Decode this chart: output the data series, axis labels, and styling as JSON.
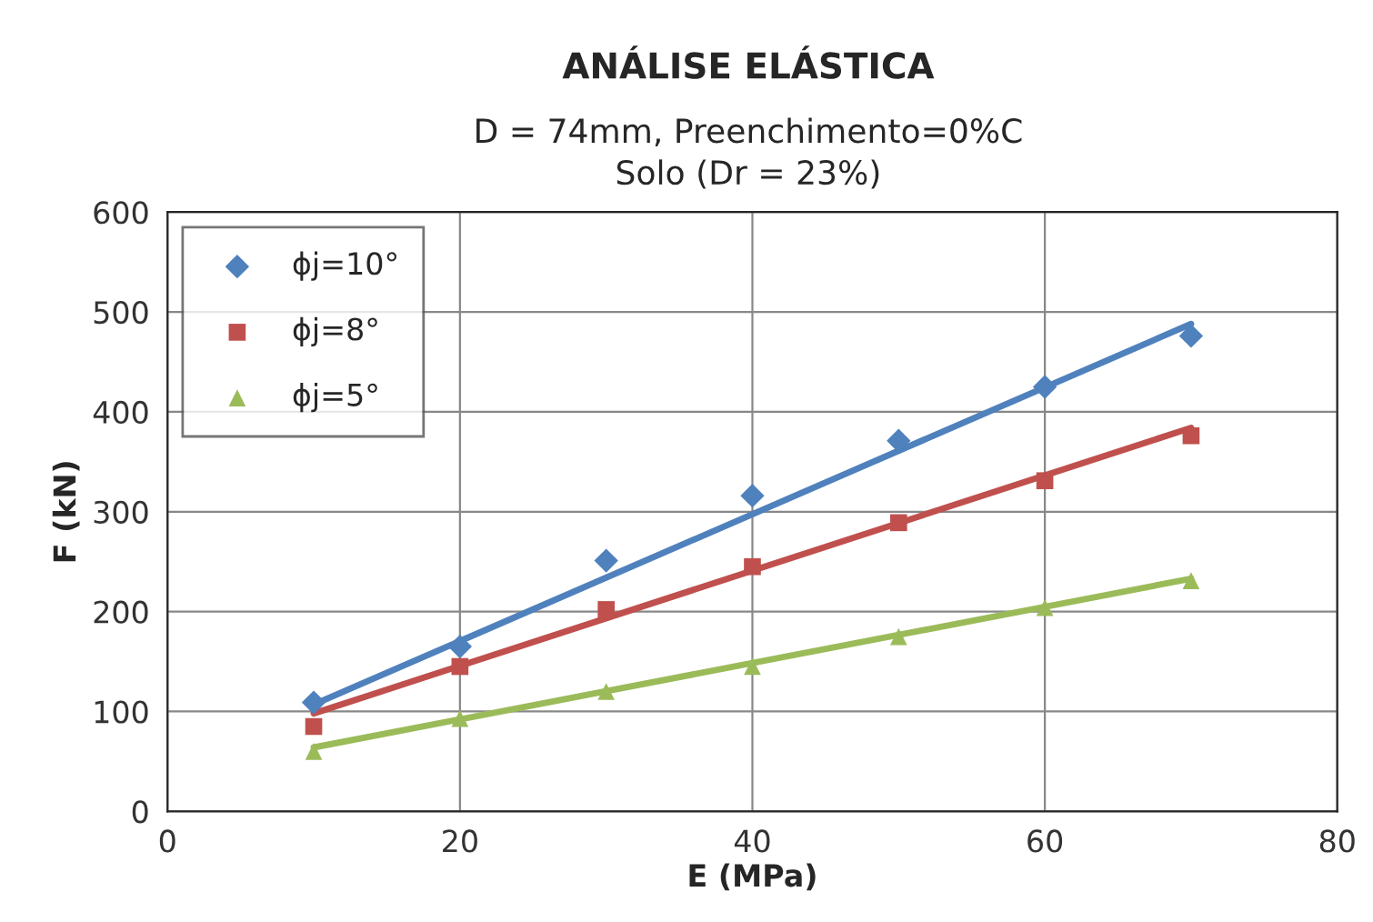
{
  "chart_data": {
    "type": "scatter",
    "title": "ANÁLISE ELÁSTICA",
    "subtitle": "D = 74mm, Preenchimento=0%C\nSolo (Dr = 23%)",
    "xlabel": "E (MPa)",
    "ylabel": "F (kN)",
    "series": [
      {
        "name": "ϕj=10°",
        "color": "#4f81bd",
        "marker": "diamond",
        "x": [
          10,
          20,
          30,
          40,
          50,
          60,
          70
        ],
        "values": [
          109,
          165,
          251,
          316,
          371,
          425,
          476
        ]
      },
      {
        "name": "ϕj=8°",
        "color": "#c0504d",
        "marker": "square",
        "x": [
          10,
          20,
          30,
          40,
          50,
          60,
          70
        ],
        "values": [
          85,
          145,
          202,
          245,
          289,
          331,
          376
        ]
      },
      {
        "name": "ϕj=5°",
        "color": "#9bbb59",
        "marker": "triangle",
        "x": [
          10,
          20,
          30,
          40,
          50,
          60,
          70
        ],
        "values": [
          60,
          93,
          120,
          145,
          175,
          204,
          231
        ]
      },
      {
        "type": "line",
        "color": "#4f81bd",
        "marker": "none",
        "x": [
          10,
          70
        ],
        "values": [
          107,
          488
        ]
      },
      {
        "type": "line",
        "color": "#c0504d",
        "marker": "none",
        "x": [
          10,
          70
        ],
        "values": [
          98,
          384
        ]
      },
      {
        "type": "line",
        "color": "#9bbb59",
        "marker": "none",
        "x": [
          10,
          70
        ],
        "values": [
          64,
          233
        ]
      }
    ],
    "xlim": [
      0,
      80
    ],
    "xticks": [
      0,
      20,
      40,
      60,
      80
    ],
    "ylim": [
      0,
      600
    ],
    "yticks": [
      0,
      100,
      200,
      300,
      400,
      500,
      600
    ],
    "grid": true,
    "legend": "top left"
  }
}
